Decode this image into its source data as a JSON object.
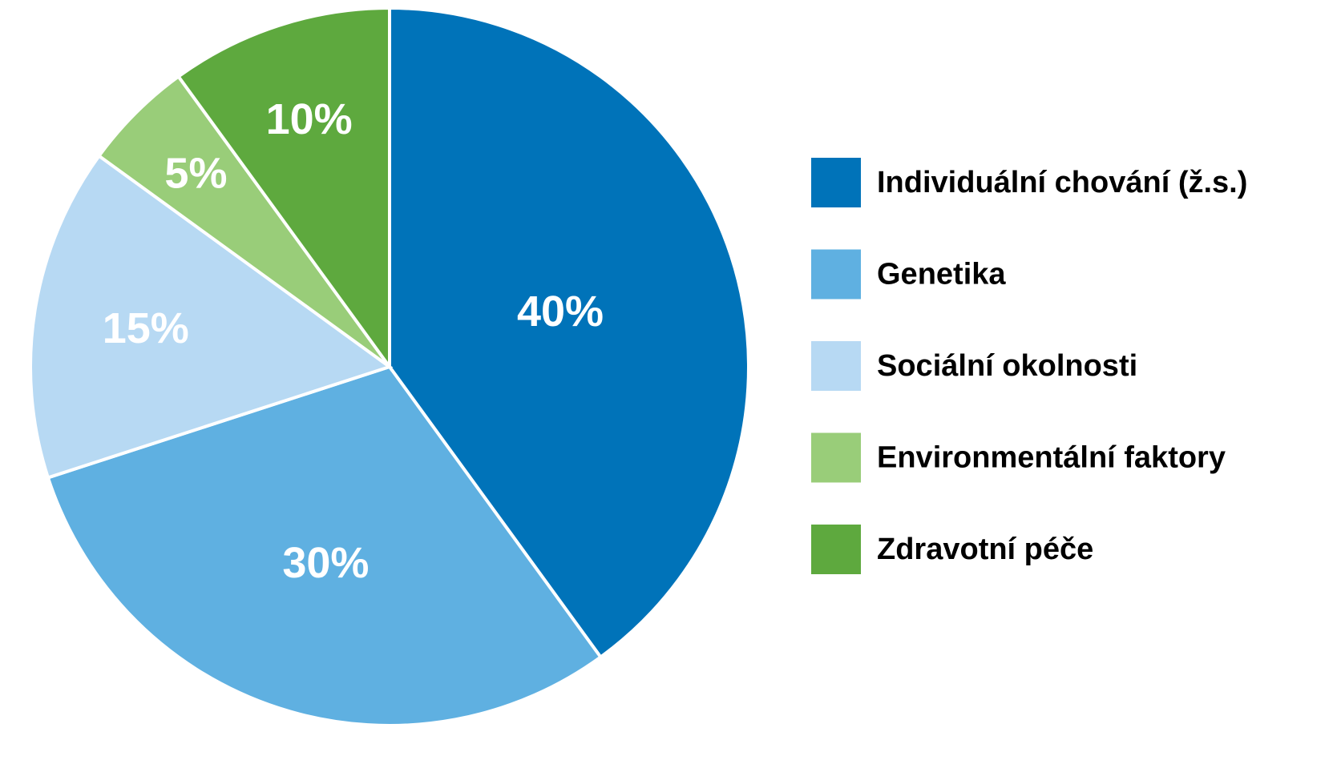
{
  "chart_data": {
    "type": "pie",
    "categories": [
      "Individuální chování (ž.s.)",
      "Genetika",
      "Sociální okolnosti",
      "Environmentální faktory",
      "Zdravotní péče"
    ],
    "values": [
      40,
      30,
      15,
      5,
      10
    ],
    "value_labels": [
      "40%",
      "30%",
      "15%",
      "5%",
      "10%"
    ],
    "colors": [
      "#0073b9",
      "#5fb0e1",
      "#b7d9f3",
      "#99cd79",
      "#5ea93e"
    ],
    "legend": "right"
  }
}
